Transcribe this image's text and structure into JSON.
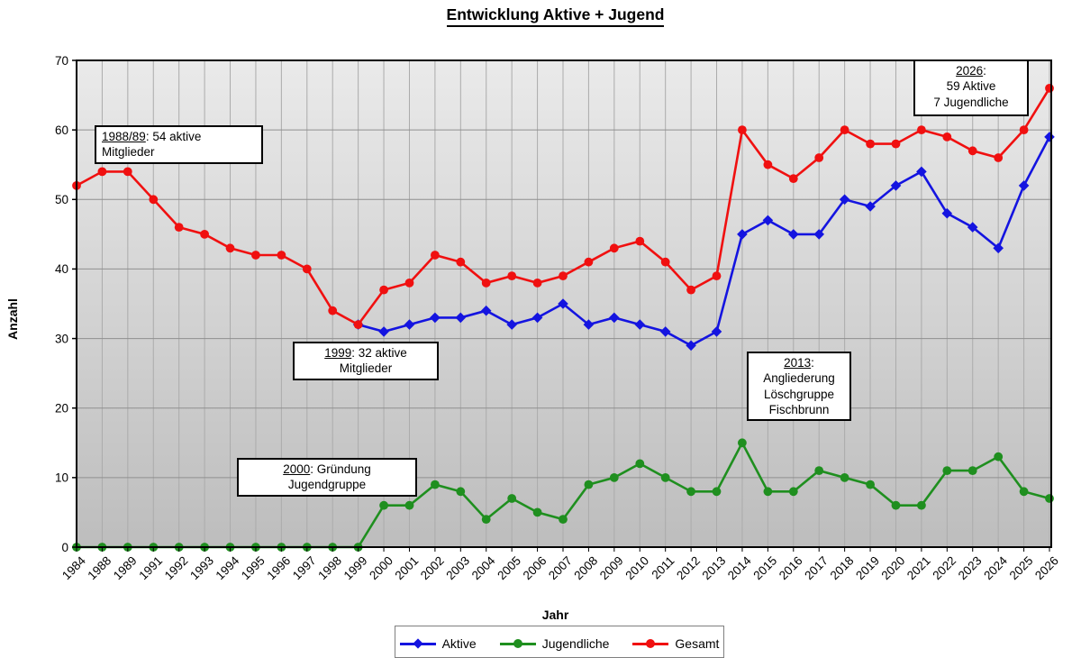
{
  "title": "Entwicklung Aktive + Jugend",
  "x_axis_title": "Jahr",
  "y_axis_title": "Anzahl",
  "annotations": {
    "a1988": {
      "underlined": "1988/89",
      "rest": ": 54 aktive",
      "line2": "Mitglieder"
    },
    "a1999": {
      "underlined": "1999",
      "rest": ": 32 aktive",
      "line2": "Mitglieder"
    },
    "a2000": {
      "underlined": "2000",
      "rest": ": Gründung",
      "line2": "Jugendgruppe"
    },
    "a2013": {
      "underlined": "2013",
      "rest": ":",
      "line2": "Angliederung",
      "line3": "Löschgruppe",
      "line4": "Fischbrunn"
    },
    "a2026": {
      "underlined": "2026",
      "rest": ":",
      "line2": "59 Aktive",
      "line3": "7 Jugendliche"
    }
  },
  "legend": {
    "items": [
      "Aktive",
      "Jugendliche",
      "Gesamt"
    ]
  },
  "chart_data": {
    "type": "line",
    "title": "Entwicklung Aktive + Jugend",
    "xlabel": "Jahr",
    "ylabel": "Anzahl",
    "ylim": [
      0,
      70
    ],
    "y_ticks": [
      0,
      10,
      20,
      30,
      40,
      50,
      60,
      70
    ],
    "grid": true,
    "legend_position": "bottom",
    "plot_bg_top": "#EAEAEA",
    "plot_bg_bottom": "#BDBDBD",
    "categories": [
      "1984",
      "1988",
      "1989",
      "1991",
      "1992",
      "1993",
      "1994",
      "1995",
      "1996",
      "1997",
      "1998",
      "1999",
      "2000",
      "2001",
      "2002",
      "2003",
      "2004",
      "2005",
      "2006",
      "2007",
      "2008",
      "2009",
      "2010",
      "2011",
      "2012",
      "2013",
      "2014",
      "2015",
      "2016",
      "2017",
      "2018",
      "2019",
      "2020",
      "2021",
      "2022",
      "2023",
      "2024",
      "2025",
      "2026"
    ],
    "series": [
      {
        "name": "Aktive",
        "color": "#1414e0",
        "marker": "diamond",
        "values": [
          null,
          null,
          null,
          null,
          null,
          null,
          null,
          null,
          null,
          null,
          null,
          32,
          31,
          32,
          33,
          33,
          34,
          32,
          33,
          35,
          32,
          33,
          32,
          31,
          29,
          31,
          45,
          47,
          45,
          45,
          50,
          49,
          52,
          54,
          48,
          46,
          43,
          52,
          59
        ]
      },
      {
        "name": "Jugendliche",
        "color": "#1f8f1f",
        "marker": "circle",
        "values": [
          0,
          0,
          0,
          0,
          0,
          0,
          0,
          0,
          0,
          0,
          0,
          0,
          6,
          6,
          9,
          8,
          4,
          7,
          5,
          4,
          9,
          10,
          12,
          10,
          8,
          8,
          15,
          8,
          8,
          11,
          10,
          9,
          6,
          6,
          11,
          11,
          13,
          8,
          7
        ]
      },
      {
        "name": "Gesamt",
        "color": "#f01010",
        "marker": "circle",
        "values": [
          52,
          54,
          54,
          50,
          46,
          45,
          43,
          42,
          42,
          40,
          34,
          32,
          37,
          38,
          42,
          41,
          38,
          39,
          38,
          39,
          41,
          43,
          44,
          41,
          37,
          39,
          60,
          55,
          53,
          56,
          60,
          58,
          58,
          60,
          59,
          57,
          56,
          60,
          66
        ]
      }
    ]
  }
}
